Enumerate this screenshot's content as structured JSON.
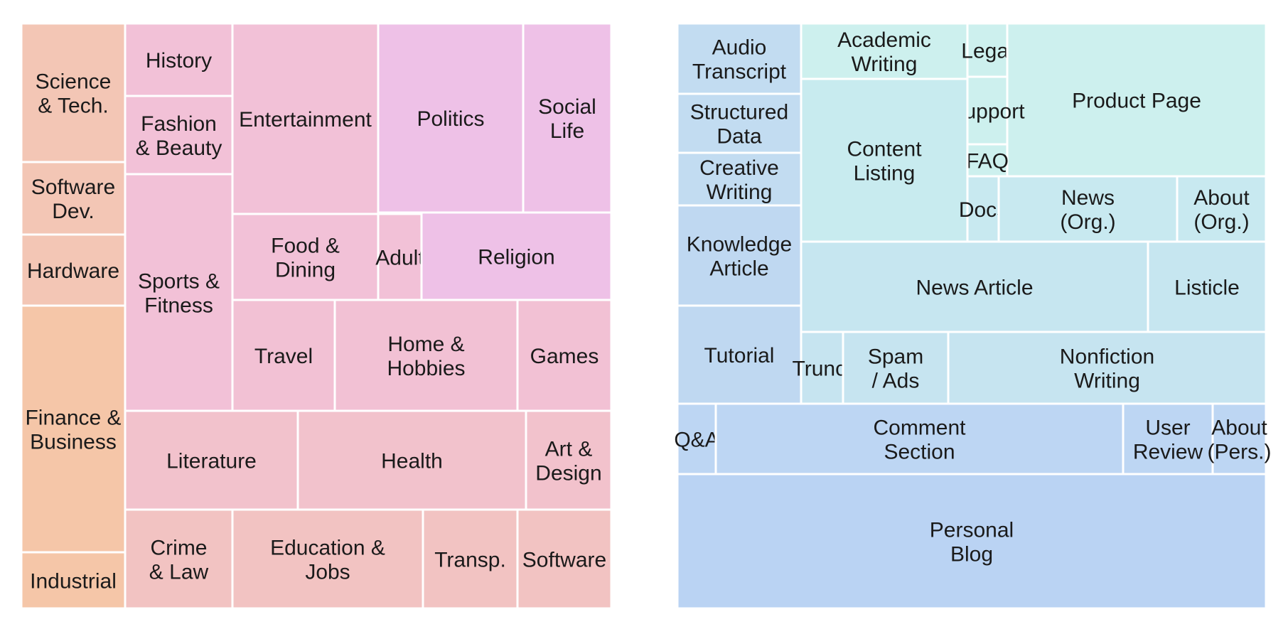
{
  "chart_data": [
    {
      "type": "treemap",
      "name": "Topic domains",
      "items": [
        {
          "label": "Science & Tech.",
          "color": "#f3c6b5"
        },
        {
          "label": "Software Dev.",
          "color": "#f3c6b5"
        },
        {
          "label": "Hardware",
          "color": "#f3c6b5"
        },
        {
          "label": "Finance & Business",
          "color": "#f5c6a8"
        },
        {
          "label": "Industrial",
          "color": "#f5c6a8"
        },
        {
          "label": "History",
          "color": "#f2c1d7"
        },
        {
          "label": "Fashion & Beauty",
          "color": "#f2c1d7"
        },
        {
          "label": "Sports & Fitness",
          "color": "#f2c1d7"
        },
        {
          "label": "Entertainment",
          "color": "#f2c1d7"
        },
        {
          "label": "Politics",
          "color": "#eec1e7"
        },
        {
          "label": "Social Life",
          "color": "#eec1e7"
        },
        {
          "label": "Food & Dining",
          "color": "#f2c1d7"
        },
        {
          "label": "Adult",
          "color": "#f2c1d7"
        },
        {
          "label": "Religion",
          "color": "#eec1e7"
        },
        {
          "label": "Travel",
          "color": "#f2c1d4"
        },
        {
          "label": "Home & Hobbies",
          "color": "#f2c1d4"
        },
        {
          "label": "Games",
          "color": "#f2c1d4"
        },
        {
          "label": "Literature",
          "color": "#f2c2cc"
        },
        {
          "label": "Health",
          "color": "#f2c2cc"
        },
        {
          "label": "Art & Design",
          "color": "#f2c2cc"
        },
        {
          "label": "Crime & Law",
          "color": "#f2c3c2"
        },
        {
          "label": "Education & Jobs",
          "color": "#f2c3c2"
        },
        {
          "label": "Transp.",
          "color": "#f2c3c2"
        },
        {
          "label": "Software",
          "color": "#f2c3c2"
        }
      ]
    },
    {
      "type": "treemap",
      "name": "Format domains",
      "items": [
        {
          "label": "Audio Transcript",
          "color": "#c2dcf1"
        },
        {
          "label": "Structured Data",
          "color": "#c2dcf1"
        },
        {
          "label": "Creative Writing",
          "color": "#c2dcf1"
        },
        {
          "label": "Knowledge Article",
          "color": "#bfd8f1"
        },
        {
          "label": "Tutorial",
          "color": "#bfd8f1"
        },
        {
          "label": "Academic Writing",
          "color": "#cdf0ee"
        },
        {
          "label": "Legal",
          "color": "#cdf0ee"
        },
        {
          "label": "Product Page",
          "color": "#cdf0ee"
        },
        {
          "label": "Support",
          "color": "#cdf0ee"
        },
        {
          "label": "FAQ",
          "color": "#cdf0ee"
        },
        {
          "label": "Content Listing",
          "color": "#c8ebef"
        },
        {
          "label": "Docs",
          "color": "#c8e9f0"
        },
        {
          "label": "News (Org.)",
          "color": "#c8e9f0"
        },
        {
          "label": "About (Org.)",
          "color": "#c8e9f0"
        },
        {
          "label": "News Article",
          "color": "#c6e6f0"
        },
        {
          "label": "Listicle",
          "color": "#c6e6f0"
        },
        {
          "label": "Trunc.",
          "color": "#c6e4f0"
        },
        {
          "label": "Spam / Ads",
          "color": "#c6e4f0"
        },
        {
          "label": "Nonfiction Writing",
          "color": "#c6e4f0"
        },
        {
          "label": "Q&A",
          "color": "#bdd6f3"
        },
        {
          "label": "Comment Section",
          "color": "#bdd6f3"
        },
        {
          "label": "User Review",
          "color": "#bdd6f3"
        },
        {
          "label": "About (Pers.)",
          "color": "#bdd6f3"
        },
        {
          "label": "Personal Blog",
          "color": "#bad3f3"
        }
      ]
    }
  ]
}
